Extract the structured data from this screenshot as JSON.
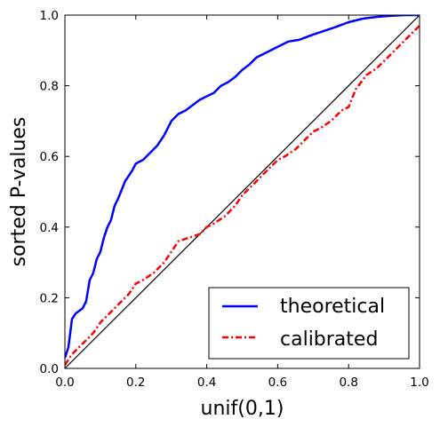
{
  "chart_data": {
    "type": "line",
    "xlabel": "unif(0,1)",
    "ylabel": "sorted P-values",
    "xlim": [
      0.0,
      1.0
    ],
    "ylim": [
      0.0,
      1.0
    ],
    "xticks": [
      "0.0",
      "0.2",
      "0.4",
      "0.6",
      "0.8",
      "1.0"
    ],
    "yticks": [
      "0.0",
      "0.2",
      "0.4",
      "0.6",
      "0.8",
      "1.0"
    ],
    "grid": false,
    "legend_position": "bottom-right",
    "reference_line": {
      "name": "diagonal",
      "x": [
        0.0,
        1.0
      ],
      "y": [
        0.0,
        1.0
      ],
      "color": "#000000"
    },
    "series": [
      {
        "name": "theoretical",
        "color": "#0000ff",
        "style": "solid",
        "x": [
          0.0,
          0.005,
          0.01,
          0.02,
          0.03,
          0.05,
          0.06,
          0.07,
          0.08,
          0.09,
          0.1,
          0.11,
          0.12,
          0.13,
          0.14,
          0.15,
          0.17,
          0.19,
          0.2,
          0.22,
          0.24,
          0.26,
          0.28,
          0.29,
          0.3,
          0.32,
          0.34,
          0.36,
          0.38,
          0.4,
          0.42,
          0.44,
          0.46,
          0.48,
          0.5,
          0.52,
          0.54,
          0.56,
          0.58,
          0.6,
          0.63,
          0.66,
          0.7,
          0.73,
          0.76,
          0.8,
          0.84,
          0.88,
          0.92,
          0.96,
          1.0
        ],
        "y": [
          0.03,
          0.045,
          0.06,
          0.14,
          0.155,
          0.17,
          0.19,
          0.25,
          0.27,
          0.31,
          0.33,
          0.37,
          0.4,
          0.42,
          0.46,
          0.48,
          0.53,
          0.56,
          0.58,
          0.59,
          0.61,
          0.63,
          0.66,
          0.68,
          0.7,
          0.72,
          0.73,
          0.745,
          0.76,
          0.77,
          0.78,
          0.8,
          0.81,
          0.825,
          0.845,
          0.86,
          0.88,
          0.89,
          0.9,
          0.91,
          0.925,
          0.93,
          0.945,
          0.955,
          0.965,
          0.98,
          0.99,
          0.995,
          0.998,
          1.0,
          1.0
        ]
      },
      {
        "name": "calibrated",
        "color": "#ff0000",
        "style": "dashdot",
        "x": [
          0.0,
          0.02,
          0.05,
          0.08,
          0.1,
          0.12,
          0.15,
          0.18,
          0.2,
          0.22,
          0.25,
          0.28,
          0.3,
          0.32,
          0.35,
          0.38,
          0.4,
          0.42,
          0.45,
          0.48,
          0.5,
          0.52,
          0.55,
          0.58,
          0.6,
          0.62,
          0.65,
          0.68,
          0.7,
          0.72,
          0.75,
          0.78,
          0.8,
          0.82,
          0.85,
          0.88,
          0.9,
          0.92,
          0.95,
          0.98,
          1.0
        ],
        "y": [
          0.01,
          0.04,
          0.07,
          0.1,
          0.13,
          0.15,
          0.18,
          0.21,
          0.24,
          0.25,
          0.27,
          0.3,
          0.33,
          0.36,
          0.37,
          0.38,
          0.4,
          0.41,
          0.43,
          0.46,
          0.49,
          0.51,
          0.54,
          0.57,
          0.59,
          0.6,
          0.62,
          0.65,
          0.67,
          0.68,
          0.7,
          0.73,
          0.74,
          0.79,
          0.83,
          0.85,
          0.87,
          0.89,
          0.92,
          0.95,
          0.97
        ]
      }
    ]
  }
}
